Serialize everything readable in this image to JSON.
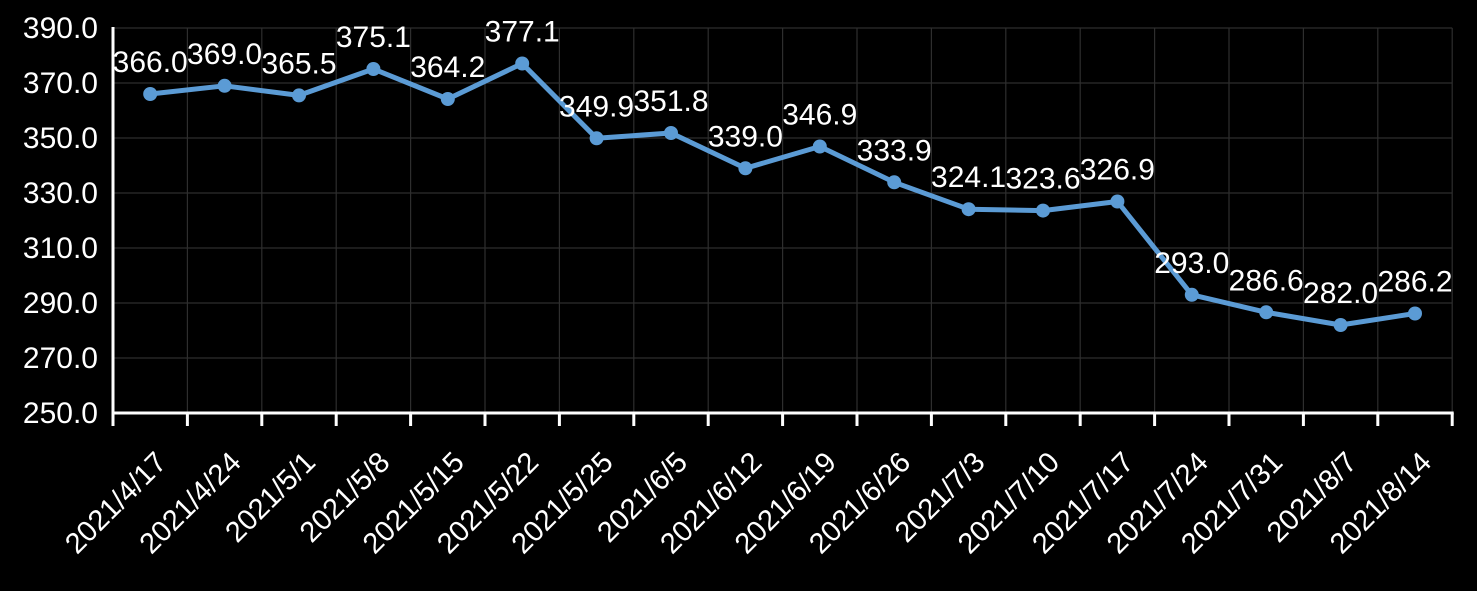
{
  "chart_data": {
    "type": "line",
    "title": "",
    "xlabel": "",
    "ylabel": "",
    "categories": [
      "2021/4/17",
      "2021/4/24",
      "2021/5/1",
      "2021/5/8",
      "2021/5/15",
      "2021/5/22",
      "2021/5/25",
      "2021/6/5",
      "2021/6/12",
      "2021/6/19",
      "2021/6/26",
      "2021/7/3",
      "2021/7/10",
      "2021/7/17",
      "2021/7/24",
      "2021/7/31",
      "2021/8/7",
      "2021/8/14"
    ],
    "values": [
      366.0,
      369.0,
      365.5,
      375.1,
      364.2,
      377.1,
      349.9,
      351.8,
      339.0,
      346.9,
      333.9,
      324.1,
      323.6,
      326.9,
      293.0,
      286.6,
      282.0,
      286.2
    ],
    "data_labels": [
      "366.0",
      "369.0",
      "365.5",
      "375.1",
      "364.2",
      "377.1",
      "349.9",
      "351.8",
      "339.0",
      "346.9",
      "333.9",
      "324.1",
      "323.6",
      "326.9",
      "293.0",
      "286.6",
      "282.0",
      "286.2"
    ],
    "ylim": [
      250.0,
      390.0
    ],
    "y_tick_step": 20.0,
    "y_tick_labels": [
      "390.0",
      "370.0",
      "350.0",
      "330.0",
      "310.0",
      "290.0",
      "270.0",
      "250.0"
    ],
    "grid": true,
    "legend": "none",
    "marker": "circle",
    "colors": {
      "background": "#000000",
      "line": "#5B9BD5",
      "marker": "#5B9BD5",
      "grid": "#2E2E2E",
      "axis": "#FFFFFF",
      "text": "#FFFFFF"
    }
  }
}
